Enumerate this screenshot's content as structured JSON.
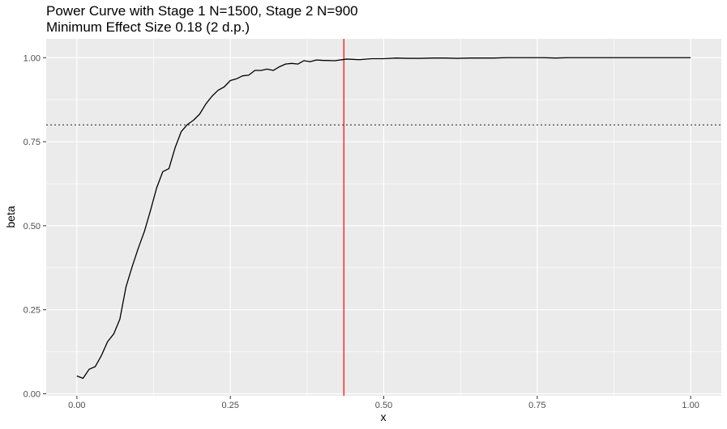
{
  "chart_data": {
    "type": "line",
    "title": "Power Curve with Stage 1 N=1500, Stage 2 N=900",
    "subtitle": "Minimum Effect Size 0.18 (2 d.p.)",
    "xlabel": "x",
    "ylabel": "beta",
    "xlim": [
      -0.05,
      1.05
    ],
    "ylim": [
      -0.006,
      1.056
    ],
    "x_ticks": [
      "0.00",
      "0.25",
      "0.50",
      "0.75",
      "1.00"
    ],
    "y_ticks": [
      "0.00",
      "0.25",
      "0.50",
      "0.75",
      "1.00"
    ],
    "grid": true,
    "series": [
      {
        "color": "#000000",
        "x": [
          0.0,
          0.01,
          0.02,
          0.03,
          0.04,
          0.05,
          0.06,
          0.07,
          0.08,
          0.09,
          0.1,
          0.11,
          0.12,
          0.13,
          0.14,
          0.15,
          0.16,
          0.17,
          0.18,
          0.19,
          0.2,
          0.21,
          0.22,
          0.23,
          0.24,
          0.25,
          0.26,
          0.27,
          0.28,
          0.29,
          0.3,
          0.31,
          0.32,
          0.33,
          0.34,
          0.35,
          0.36,
          0.37,
          0.38,
          0.39,
          0.4,
          0.42,
          0.44,
          0.46,
          0.48,
          0.5,
          0.52,
          0.54,
          0.56,
          0.58,
          0.6,
          0.62,
          0.64,
          0.66,
          0.68,
          0.7,
          0.72,
          0.74,
          0.76,
          0.78,
          0.8,
          0.85,
          0.9,
          0.95,
          1.0
        ],
        "y": [
          0.053,
          0.046,
          0.073,
          0.081,
          0.114,
          0.155,
          0.178,
          0.222,
          0.318,
          0.378,
          0.433,
          0.483,
          0.546,
          0.613,
          0.661,
          0.67,
          0.732,
          0.78,
          0.801,
          0.814,
          0.832,
          0.862,
          0.885,
          0.903,
          0.913,
          0.932,
          0.937,
          0.946,
          0.948,
          0.962,
          0.962,
          0.966,
          0.962,
          0.973,
          0.981,
          0.983,
          0.981,
          0.991,
          0.988,
          0.993,
          0.992,
          0.991,
          0.996,
          0.994,
          0.997,
          0.997,
          0.999,
          0.998,
          0.998,
          0.999,
          0.999,
          0.998,
          0.999,
          0.999,
          0.999,
          1.0,
          1.0,
          1.0,
          1.0,
          0.999,
          1.0,
          1.0,
          1.0,
          1.0,
          1.0
        ]
      }
    ],
    "reference_lines": [
      {
        "orientation": "horizontal",
        "y": 0.8,
        "style": "dotted",
        "color": "#333333"
      },
      {
        "orientation": "vertical",
        "x": 0.435,
        "style": "solid",
        "color": "#ff0000"
      }
    ]
  },
  "colors": {
    "panel_background": "#ebebeb",
    "grid_major": "#ffffff",
    "line": "#000000",
    "threshold_line": "#333333",
    "marker_line": "#ff0000"
  }
}
